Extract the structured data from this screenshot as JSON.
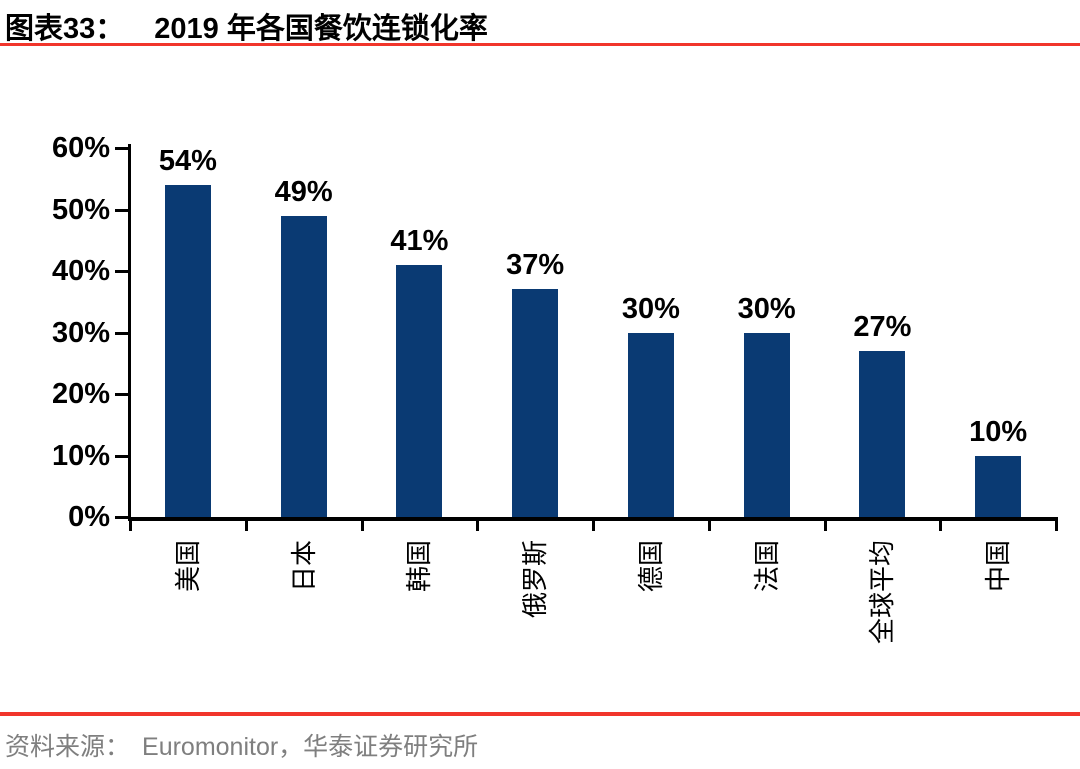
{
  "figure": {
    "label": "图表33：",
    "title": "2019 年各国餐饮连锁化率"
  },
  "chart_data": {
    "type": "bar",
    "title": "2019 年各国餐饮连锁化率",
    "categories": [
      "美国",
      "日本",
      "韩国",
      "俄罗斯",
      "德国",
      "法国",
      "全球平均",
      "中国"
    ],
    "values": [
      54,
      49,
      41,
      37,
      30,
      30,
      27,
      10
    ],
    "value_labels": [
      "54%",
      "49%",
      "41%",
      "37%",
      "30%",
      "30%",
      "27%",
      "10%"
    ],
    "xlabel": "",
    "ylabel": "",
    "ylim": [
      0,
      60
    ],
    "ytick_step": 10,
    "ytick_labels": [
      "0%",
      "10%",
      "20%",
      "30%",
      "40%",
      "50%",
      "60%"
    ],
    "grid": false,
    "legend_position": "none",
    "bar_color": "#0A3A73",
    "x_label_rotation_deg": -90
  },
  "footer": {
    "source_label": "资料来源：",
    "source_text": "Euromonitor，华泰证券研究所"
  },
  "colors": {
    "accent_red": "#F1352B",
    "bar_navy": "#0A3A73",
    "source_gray": "#7F7F7F",
    "axis_black": "#000000"
  }
}
